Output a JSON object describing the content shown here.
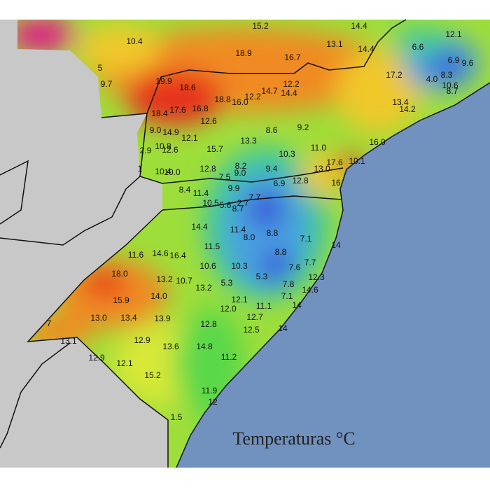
{
  "title": "Temperaturas °C",
  "labels": [
    "15.2",
    "14.4",
    "12.1",
    "10.4",
    "6.6",
    "13.1",
    "14.4",
    "18.9",
    "16.7",
    "6.9",
    "9.6",
    "5",
    "17.2",
    "4.0",
    "8.3",
    "10.6",
    "9.7",
    "19.9",
    "18.6",
    "12.2",
    "14.7",
    "14.4",
    "8.7",
    "12.2",
    "18.8",
    "16.0",
    "13.4",
    "14.2",
    "18.4",
    "17.6",
    "16.8",
    "12.6",
    "9.2",
    "8.6",
    "9.0",
    "14.9",
    "12.1",
    "13.3",
    "16.0",
    "2.9",
    "10.8",
    "12.6",
    "15.7",
    "10.3",
    "11.0",
    "17.6",
    "10.1",
    "12.8",
    "8.2",
    "9.0",
    "9.4",
    "13.0",
    "1",
    "10.4",
    "10.0",
    "7.5",
    "6.9",
    "12.8",
    "16",
    "8.4",
    "11.4",
    "9.9",
    "7.7",
    "10.5",
    "5.6",
    "2.7",
    "8.7",
    "14.4",
    "11.4",
    "8.8",
    "8.0",
    "7.1",
    "11.5",
    "14",
    "11.6",
    "14.6",
    "16.4",
    "8.8",
    "7.7",
    "10.6",
    "10.3",
    "7.6",
    "18.0",
    "13.2",
    "10.7",
    "5.3",
    "12.3",
    "7.8",
    "5.3",
    "13.2",
    "14.6",
    "15.9",
    "14.0",
    "7.1",
    "12.1",
    "14",
    "11.1",
    "12.0",
    "13.0",
    "13.4",
    "13.9",
    "12.7",
    "12.8",
    "7",
    "14",
    "12.5",
    "13.1",
    "12.9",
    "13.6",
    "14.8",
    "11.2",
    "12.9",
    "12.1",
    "15.2",
    "11.9",
    "12",
    "1.5"
  ]
}
